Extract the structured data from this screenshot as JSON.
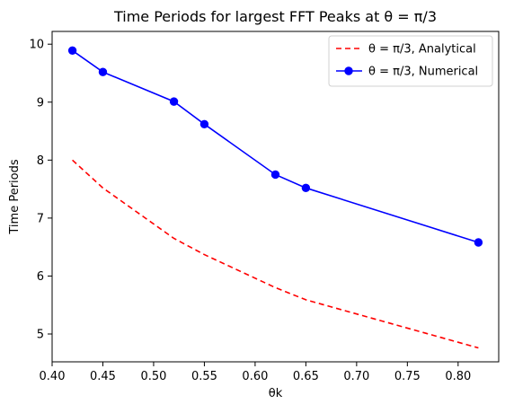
{
  "chart_data": {
    "type": "line",
    "title": "Time Periods for largest FFT Peaks at θ = π/3",
    "xlabel": "θk",
    "ylabel": "Time Periods",
    "xlim": [
      0.4,
      0.84
    ],
    "ylim": [
      4.52,
      10.22
    ],
    "x_ticks": [
      0.4,
      0.45,
      0.5,
      0.55,
      0.6,
      0.65,
      0.7,
      0.75,
      0.8
    ],
    "x_tick_labels": [
      "0.40",
      "0.45",
      "0.50",
      "0.55",
      "0.60",
      "0.65",
      "0.70",
      "0.75",
      "0.80"
    ],
    "y_ticks": [
      5,
      6,
      7,
      8,
      9,
      10
    ],
    "y_tick_labels": [
      "5",
      "6",
      "7",
      "8",
      "9",
      "10"
    ],
    "grid": false,
    "legend_position": "top-right",
    "series": [
      {
        "name": "θ = π/3, Analytical",
        "style": "dashed",
        "marker": "none",
        "color": "#ff0000",
        "x": [
          0.42,
          0.45,
          0.52,
          0.55,
          0.62,
          0.65,
          0.82
        ],
        "y": [
          8.0,
          7.52,
          6.65,
          6.37,
          5.8,
          5.59,
          4.76
        ]
      },
      {
        "name": "θ = π/3, Numerical",
        "style": "solid",
        "marker": "circle",
        "color": "#0000ff",
        "x": [
          0.42,
          0.45,
          0.52,
          0.55,
          0.62,
          0.65,
          0.82
        ],
        "y": [
          9.89,
          9.52,
          9.01,
          8.62,
          7.75,
          7.52,
          6.58
        ]
      }
    ]
  }
}
